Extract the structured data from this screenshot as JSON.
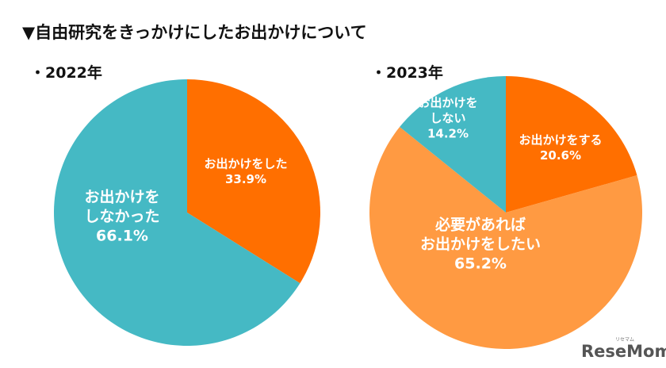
{
  "title": "▼自由研究をきっかけにしたお出かけについて",
  "logo": {
    "text": "ReseMom",
    "sub": "リセマム"
  },
  "colors": {
    "teal": "#45B9C4",
    "dark_orange": "#FF6F00",
    "light_orange": "#FF9A42",
    "text": "#111111",
    "label": "#ffffff"
  },
  "chart_data": [
    {
      "type": "pie",
      "title": "・2022年",
      "slices": [
        {
          "name": "お出かけをした",
          "lines": [
            "お出かけをした",
            "33.9%"
          ],
          "value": 33.9,
          "color": "#FF6F00"
        },
        {
          "name": "お出かけをしなかった",
          "lines": [
            "お出かけを",
            "しなかった",
            "66.1%"
          ],
          "value": 66.1,
          "color": "#45B9C4"
        }
      ]
    },
    {
      "type": "pie",
      "title": "・2023年",
      "slices": [
        {
          "name": "お出かけをする",
          "lines": [
            "お出かけをする",
            "20.6%"
          ],
          "value": 20.6,
          "color": "#FF6F00"
        },
        {
          "name": "必要があればお出かけをしたい",
          "lines": [
            "必要があれば",
            "お出かけをしたい",
            "65.2%"
          ],
          "value": 65.2,
          "color": "#FF9A42"
        },
        {
          "name": "お出かけをしない",
          "lines": [
            "お出かけを",
            "しない",
            "14.2%"
          ],
          "value": 14.2,
          "color": "#45B9C4"
        }
      ]
    }
  ]
}
